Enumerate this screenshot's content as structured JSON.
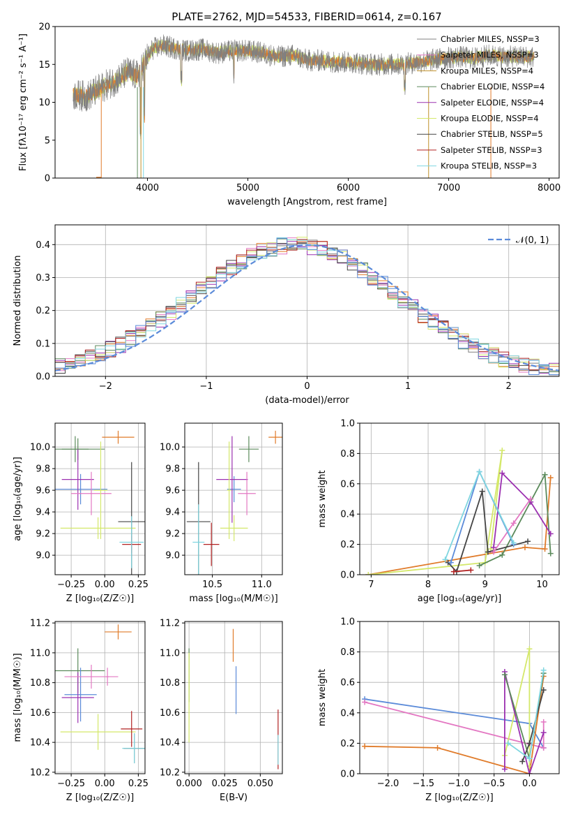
{
  "chart_data": [
    {
      "id": "spectrum",
      "type": "line",
      "title": "PLATE=2762, MJD=54533, FIBERID=0614, z=0.167",
      "xlabel": "wavelength [Angstrom, rest frame]",
      "ylabel": "Flux [fλ10⁻¹⁷ erg cm⁻² s⁻¹ A⁻¹]",
      "xlim": [
        3080,
        8100
      ],
      "ylim": [
        0,
        20
      ],
      "xticks": [
        4000,
        5000,
        6000,
        7000,
        8000
      ],
      "yticks": [
        0,
        5,
        10,
        15,
        20
      ],
      "grid": false,
      "legend_position": "right",
      "series": [
        {
          "name": "Chabrier MILES, NSSP=3",
          "color": "#808080"
        },
        {
          "name": "Salpeter MILES, NSSP=3",
          "color": "#e377c2"
        },
        {
          "name": "Kroupa MILES, NSSP=4",
          "color": "#bf8f2a"
        },
        {
          "name": "Chabrier ELODIE, NSSP=4",
          "color": "#5b8a5b"
        },
        {
          "name": "Salpeter ELODIE, NSSP=4",
          "color": "#9b30b0"
        },
        {
          "name": "Kroupa ELODIE, NSSP=4",
          "color": "#d4e86a"
        },
        {
          "name": "Chabrier STELIB, NSSP=5",
          "color": "#444444"
        },
        {
          "name": "Salpeter STELIB, NSSP=3",
          "color": "#b22222"
        },
        {
          "name": "Kroupa STELIB, NSSP=3",
          "color": "#7fd6e0"
        }
      ],
      "profile": {
        "x": [
          3260,
          3400,
          3550,
          3700,
          3800,
          3900,
          3980,
          4050,
          4150,
          4250,
          4400,
          4550,
          4700,
          4850,
          5000,
          5150,
          5300,
          5450,
          5600,
          5750,
          5900,
          6050,
          6200,
          6350,
          6500,
          6650,
          6800,
          6950,
          7100,
          7250,
          7400,
          7550,
          7700,
          7850
        ],
        "y": [
          11,
          10.8,
          12,
          13,
          14,
          13.5,
          15.5,
          17,
          17.5,
          17.2,
          16.8,
          17,
          16.5,
          16.8,
          16.8,
          16.5,
          16,
          16.2,
          15.5,
          15.5,
          15.3,
          15.3,
          15,
          15,
          15,
          15.2,
          15.5,
          15.8,
          16,
          15.8,
          16.2,
          16,
          16,
          16
        ]
      }
    },
    {
      "id": "residuals",
      "type": "histogram",
      "xlabel": "(data-model)/error",
      "ylabel": "Normed distribution",
      "xlim": [
        -2.5,
        2.5
      ],
      "ylim": [
        0,
        0.46
      ],
      "xticks": [
        -2,
        -1,
        0,
        1,
        2
      ],
      "yticks": [
        0.0,
        0.1,
        0.2,
        0.3,
        0.4
      ],
      "grid": true,
      "legend_position": "top-right",
      "reference": {
        "name": "𝒩(0, 1)",
        "mean": 0,
        "sigma": 1,
        "color": "#5b8bd9"
      },
      "bin_width": 0.1
    },
    {
      "id": "age-vs-Z",
      "type": "errorbar",
      "xlabel": "Z [log₁₀(Z/Z☉)]",
      "ylabel": "age  [log₁₀(age/yr)]",
      "xlim": [
        -0.37,
        0.3
      ],
      "ylim": [
        8.82,
        10.22
      ],
      "xticks": [
        -0.25,
        0.0,
        0.25
      ],
      "xtick_labels": [
        "−0.25",
        "0.00",
        "0.25"
      ],
      "yticks": [
        9.0,
        9.2,
        9.4,
        9.6,
        9.8,
        10.0
      ],
      "grid": true,
      "points": [
        {
          "x": 0.1,
          "y": 10.09,
          "xerr": 0.12,
          "yerr": 0.06,
          "color": "#e07b2a"
        },
        {
          "x": -0.22,
          "y": 9.98,
          "xerr": 0.1,
          "yerr": 0.12,
          "color": "#5b8a5b"
        },
        {
          "x": -0.2,
          "y": 9.98,
          "xerr": 0.2,
          "yerr": 0.1,
          "color": "#5b8a5b"
        },
        {
          "x": -0.18,
          "y": 9.61,
          "xerr": 0.2,
          "yerr": 0.14,
          "color": "#5b8bd9"
        },
        {
          "x": -0.2,
          "y": 9.7,
          "xerr": 0.12,
          "yerr": 0.28,
          "color": "#9b30b0"
        },
        {
          "x": -0.1,
          "y": 9.57,
          "xerr": 0.15,
          "yerr": 0.2,
          "color": "#e377c2"
        },
        {
          "x": -0.05,
          "y": 9.25,
          "xerr": 0.28,
          "yerr": 0.1,
          "color": "#d4e86a"
        },
        {
          "x": -0.03,
          "y": 9.6,
          "xerr": 0.05,
          "yerr": 0.45,
          "color": "#d4e86a"
        },
        {
          "x": 0.2,
          "y": 9.31,
          "xerr": 0.1,
          "yerr": 0.55,
          "color": "#444444"
        },
        {
          "x": 0.2,
          "y": 9.1,
          "xerr": 0.07,
          "yerr": 0.08,
          "color": "#b22222"
        },
        {
          "x": 0.2,
          "y": 9.12,
          "xerr": 0.09,
          "yerr": 0.24,
          "color": "#7fd6e0"
        }
      ]
    },
    {
      "id": "age-vs-mass",
      "type": "errorbar",
      "xlabel": "mass [log₁₀(M/M☉)]",
      "xlim": [
        10.22,
        11.21
      ],
      "ylim": [
        8.82,
        10.22
      ],
      "xticks": [
        10.5,
        11.0
      ],
      "yticks": [
        9.0,
        9.2,
        9.4,
        9.6,
        9.8,
        10.0
      ],
      "grid": true,
      "points": [
        {
          "x": 11.14,
          "y": 10.09,
          "xerr": 0.07,
          "yerr": 0.06,
          "color": "#e07b2a"
        },
        {
          "x": 10.87,
          "y": 9.98,
          "xerr": 0.1,
          "yerr": 0.12,
          "color": "#5b8a5b"
        },
        {
          "x": 10.72,
          "y": 9.61,
          "xerr": 0.07,
          "yerr": 0.12,
          "color": "#5b8bd9"
        },
        {
          "x": 10.7,
          "y": 9.7,
          "xerr": 0.16,
          "yerr": 0.4,
          "color": "#9b30b0"
        },
        {
          "x": 10.85,
          "y": 9.57,
          "xerr": 0.09,
          "yerr": 0.2,
          "color": "#e377c2"
        },
        {
          "x": 10.72,
          "y": 9.25,
          "xerr": 0.14,
          "yerr": 0.12,
          "color": "#d4e86a"
        },
        {
          "x": 10.67,
          "y": 9.6,
          "xerr": 0.02,
          "yerr": 0.45,
          "color": "#d4e86a"
        },
        {
          "x": 10.36,
          "y": 9.31,
          "xerr": 0.12,
          "yerr": 0.55,
          "color": "#444444"
        },
        {
          "x": 10.49,
          "y": 9.1,
          "xerr": 0.08,
          "yerr": 0.2,
          "color": "#b22222"
        },
        {
          "x": 10.36,
          "y": 9.12,
          "xerr": 0.06,
          "yerr": 0.35,
          "color": "#7fd6e0"
        }
      ]
    },
    {
      "id": "weight-vs-age",
      "type": "line",
      "xlabel": "age  [log₁₀(age/yr)]",
      "ylabel": "mass weight",
      "xlim": [
        6.8,
        10.3
      ],
      "ylim": [
        0,
        1
      ],
      "xticks": [
        7,
        8,
        9,
        10
      ],
      "yticks": [
        0.0,
        0.2,
        0.4,
        0.6,
        0.8,
        1.0
      ],
      "grid": true,
      "series": [
        {
          "color": "#e07b2a",
          "x": [
            6.95,
            9.7,
            10.05,
            10.15
          ],
          "y": [
            0.0,
            0.18,
            0.17,
            0.64
          ]
        },
        {
          "color": "#d4e86a",
          "x": [
            6.95,
            9.0,
            9.3,
            9.1
          ],
          "y": [
            0.0,
            0.08,
            0.82,
            0.17
          ]
        },
        {
          "color": "#5b8a5b",
          "x": [
            8.9,
            9.3,
            10.05,
            10.15
          ],
          "y": [
            0.06,
            0.13,
            0.66,
            0.14
          ]
        },
        {
          "color": "#9b30b0",
          "x": [
            9.15,
            9.3,
            9.8,
            10.15
          ],
          "y": [
            0.18,
            0.67,
            0.48,
            0.27
          ]
        },
        {
          "color": "#444444",
          "x": [
            8.35,
            8.5,
            8.95,
            9.05,
            9.75
          ],
          "y": [
            0.08,
            0.02,
            0.55,
            0.15,
            0.22
          ]
        },
        {
          "color": "#e377c2",
          "x": [
            9.15,
            9.5,
            9.8
          ],
          "y": [
            0.15,
            0.34,
            0.5
          ]
        },
        {
          "color": "#5b8bd9",
          "x": [
            8.4,
            8.9,
            9.5
          ],
          "y": [
            0.08,
            0.68,
            0.2
          ]
        },
        {
          "color": "#7fd6e0",
          "x": [
            8.3,
            8.9,
            9.5
          ],
          "y": [
            0.1,
            0.68,
            0.21
          ]
        },
        {
          "color": "#b22222",
          "x": [
            8.45,
            8.75
          ],
          "y": [
            0.02,
            0.03
          ]
        }
      ]
    },
    {
      "id": "mass-vs-Z",
      "type": "errorbar",
      "xlabel": "Z [log₁₀(Z/Z☉)]",
      "ylabel": "mass [log₁₀(M/M☉)]",
      "xlim": [
        -0.37,
        0.3
      ],
      "ylim": [
        10.19,
        11.21
      ],
      "xticks": [
        -0.25,
        0.0,
        0.25
      ],
      "xtick_labels": [
        "−0.25",
        "0.00",
        "0.25"
      ],
      "yticks": [
        10.2,
        10.4,
        10.6,
        10.8,
        11.0,
        11.2
      ],
      "grid": true,
      "points": [
        {
          "x": 0.1,
          "y": 11.14,
          "xerr": 0.1,
          "yerr": 0.05,
          "color": "#e07b2a"
        },
        {
          "x": -0.2,
          "y": 10.88,
          "xerr": 0.2,
          "yerr": 0.15,
          "color": "#5b8a5b"
        },
        {
          "x": -0.18,
          "y": 10.72,
          "xerr": 0.12,
          "yerr": 0.18,
          "color": "#5b8bd9"
        },
        {
          "x": -0.2,
          "y": 10.7,
          "xerr": 0.12,
          "yerr": 0.17,
          "color": "#9b30b0"
        },
        {
          "x": -0.1,
          "y": 10.84,
          "xerr": 0.2,
          "yerr": 0.08,
          "color": "#e377c2"
        },
        {
          "x": 0.02,
          "y": 10.84,
          "xerr": 0.01,
          "yerr": 0.06,
          "color": "#e377c2"
        },
        {
          "x": -0.05,
          "y": 10.47,
          "xerr": 0.28,
          "yerr": 0.12,
          "color": "#d4e86a"
        },
        {
          "x": 0.2,
          "y": 10.49,
          "xerr": 0.08,
          "yerr": 0.12,
          "color": "#b22222"
        },
        {
          "x": 0.22,
          "y": 10.36,
          "xerr": 0.08,
          "yerr": 0.1,
          "color": "#444444"
        },
        {
          "x": 0.22,
          "y": 10.36,
          "xerr": 0.09,
          "yerr": 0.1,
          "color": "#7fd6e0"
        }
      ]
    },
    {
      "id": "mass-vs-EBV",
      "type": "errorbar",
      "xlabel": "E(B-V)",
      "xlim": [
        -0.003,
        0.0655
      ],
      "ylim": [
        10.19,
        11.21
      ],
      "xticks": [
        0.0,
        0.025,
        0.05
      ],
      "xtick_labels": [
        "0.000",
        "0.025",
        "0.050"
      ],
      "yticks": [
        10.2,
        10.4,
        10.6,
        10.8,
        11.0,
        11.2
      ],
      "grid": true,
      "points": [
        {
          "x": 0.031,
          "y": 11.05,
          "xerr": 0,
          "yerr": 0.11,
          "color": "#e07b2a"
        },
        {
          "x": 0.0,
          "y": 10.85,
          "xerr": 0,
          "yerr": 0.18,
          "color": "#5b8a5b"
        },
        {
          "x": 0.0,
          "y": 10.7,
          "xerr": 0,
          "yerr": 0.3,
          "color": "#d4e86a"
        },
        {
          "x": 0.033,
          "y": 10.75,
          "xerr": 0,
          "yerr": 0.16,
          "color": "#5b8bd9"
        },
        {
          "x": 0.0625,
          "y": 10.42,
          "xerr": 0,
          "yerr": 0.2,
          "color": "#b22222"
        },
        {
          "x": 0.0625,
          "y": 10.35,
          "xerr": 0,
          "yerr": 0.1,
          "color": "#7fd6e0"
        }
      ]
    },
    {
      "id": "weight-vs-Z",
      "type": "line",
      "xlabel": "Z [log₁₀(Z/Z☉)]",
      "ylabel": "mass weight",
      "xlim": [
        -2.4,
        0.42
      ],
      "ylim": [
        0,
        1
      ],
      "xticks": [
        -2.0,
        -1.5,
        -1.0,
        -0.5,
        0.0
      ],
      "xtick_labels": [
        "−2.0",
        "−1.5",
        "−1.0",
        "−0.5",
        "0.0"
      ],
      "yticks": [
        0.0,
        0.2,
        0.4,
        0.6,
        0.8,
        1.0
      ],
      "grid": true,
      "series": [
        {
          "color": "#5b8bd9",
          "x": [
            -2.33,
            0.0,
            0.2
          ],
          "y": [
            0.49,
            0.33,
            0.17
          ]
        },
        {
          "color": "#e377c2",
          "x": [
            -2.33,
            0.2,
            0.2
          ],
          "y": [
            0.47,
            0.17,
            0.34
          ]
        },
        {
          "color": "#e07b2a",
          "x": [
            -2.33,
            -1.3,
            0.0,
            0.2
          ],
          "y": [
            0.18,
            0.17,
            0.0,
            0.64
          ]
        },
        {
          "color": "#d4e86a",
          "x": [
            -0.35,
            0.0,
            0.0
          ],
          "y": [
            0.12,
            0.82,
            0.05
          ]
        },
        {
          "color": "#9b30b0",
          "x": [
            -0.35,
            -0.35,
            0.0,
            0.2
          ],
          "y": [
            0.03,
            0.67,
            0.0,
            0.27
          ]
        },
        {
          "color": "#5b8a5b",
          "x": [
            -0.35,
            0.0,
            0.2
          ],
          "y": [
            0.65,
            0.1,
            0.66
          ]
        },
        {
          "color": "#444444",
          "x": [
            -0.1,
            0.0,
            0.2
          ],
          "y": [
            0.08,
            0.2,
            0.55
          ]
        },
        {
          "color": "#7fd6e0",
          "x": [
            -0.3,
            0.0,
            0.2
          ],
          "y": [
            0.2,
            0.1,
            0.68
          ]
        }
      ]
    }
  ]
}
